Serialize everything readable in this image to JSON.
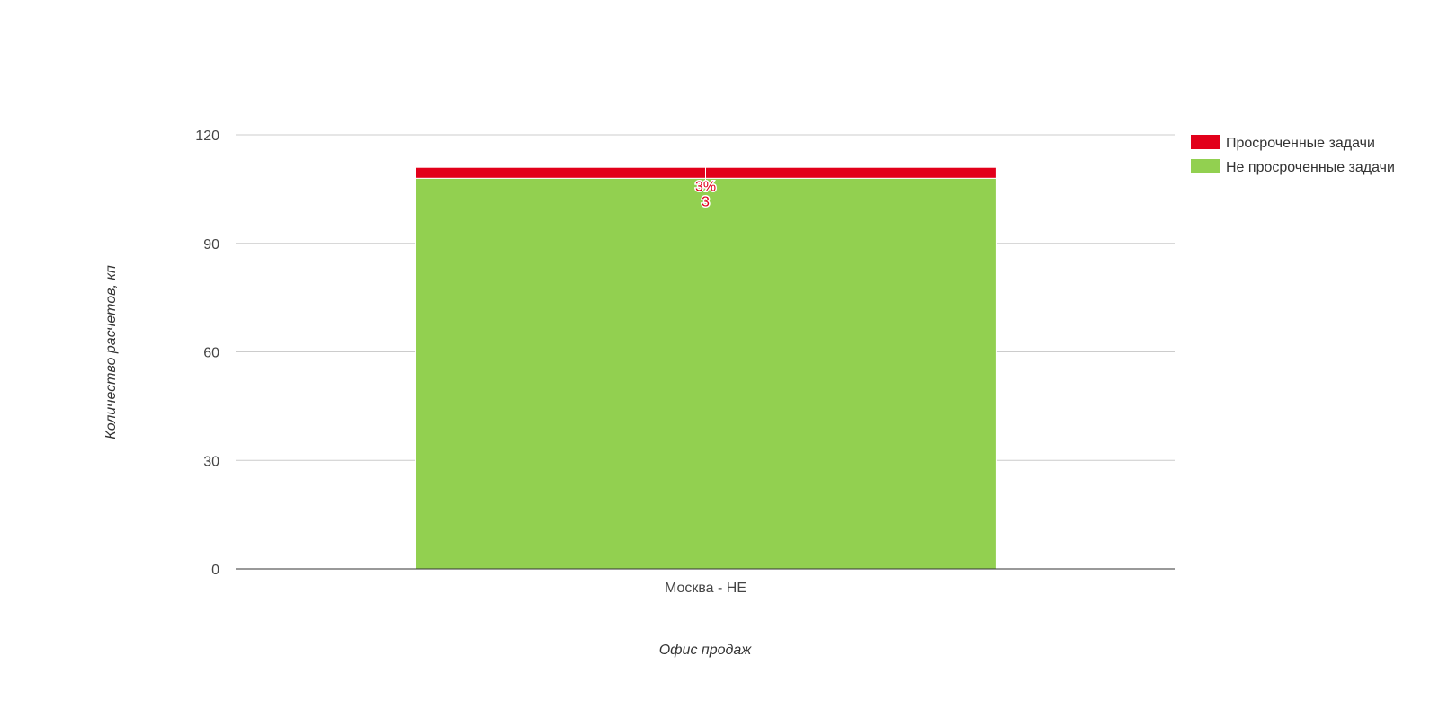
{
  "chart_data": {
    "type": "bar",
    "stacked": true,
    "categories": [
      "Москва - НЕ"
    ],
    "series": [
      {
        "name": "Не просроченные задачи",
        "values": [
          108
        ],
        "color": "#92d050"
      },
      {
        "name": "Просроченные задачи",
        "values": [
          3
        ],
        "color": "#e2001a"
      }
    ],
    "data_labels": [
      {
        "series": "Просроченные задачи",
        "category": "Москва - НЕ",
        "percent": "3%",
        "value": "3"
      }
    ],
    "xlabel": "Офис продаж",
    "ylabel": "Количество расчетов, кп",
    "ylim": [
      0,
      120
    ],
    "yticks": [
      0,
      30,
      60,
      90,
      120
    ],
    "grid": true,
    "legend": {
      "placement": "top-right",
      "items": [
        {
          "label": "Просроченные задачи",
          "color": "#e2001a"
        },
        {
          "label": "Не просроченные задачи",
          "color": "#92d050"
        }
      ]
    }
  }
}
